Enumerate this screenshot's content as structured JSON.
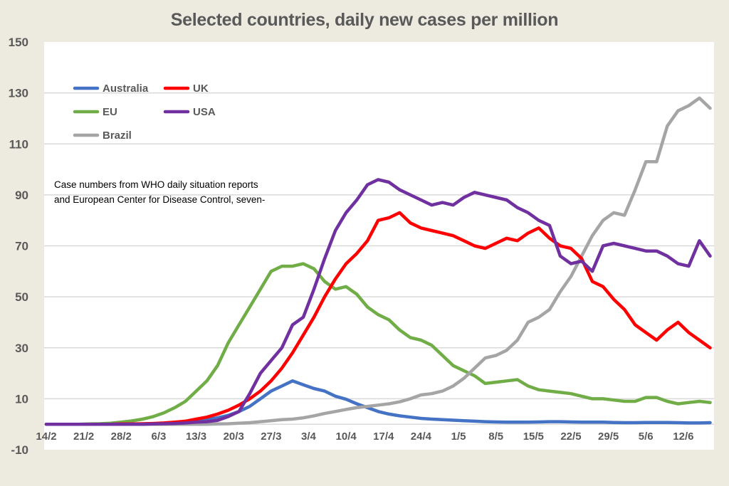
{
  "chart_data": {
    "type": "line",
    "title": "Selected countries, daily new cases per million",
    "xlabel": "",
    "ylabel": "",
    "ylim": [
      -10,
      150
    ],
    "yticks": [
      150,
      130,
      110,
      90,
      70,
      50,
      30,
      10,
      -10
    ],
    "grid": true,
    "x_start_label": "14/2",
    "x_step_days": 2,
    "x_day_range": [
      0,
      124
    ],
    "xtick_labels": [
      "14/2",
      "21/2",
      "28/2",
      "6/3",
      "13/3",
      "20/3",
      "27/3",
      "3/4",
      "10/4",
      "17/4",
      "24/4",
      "1/5",
      "8/5",
      "15/5",
      "22/5",
      "29/5",
      "5/6",
      "12/6"
    ],
    "xtick_days": [
      0,
      7,
      14,
      21,
      28,
      35,
      42,
      49,
      56,
      63,
      70,
      77,
      84,
      91,
      98,
      105,
      112,
      119
    ],
    "legend_position": "top-left",
    "annotation": [
      "Case numbers from WHO daily situation reports",
      "and European Center for Disease Control, seven-"
    ],
    "series": [
      {
        "name": "Australia",
        "color": "#4472c4",
        "values": [
          0,
          0,
          0,
          0,
          0,
          0,
          0,
          0.1,
          0.1,
          0.1,
          0.2,
          0.3,
          0.5,
          0.8,
          1.2,
          1.8,
          2.5,
          3.5,
          5,
          7,
          10,
          13,
          15,
          17,
          15.5,
          14,
          13,
          11,
          9.8,
          8,
          6.5,
          5,
          4,
          3.3,
          2.8,
          2.3,
          2,
          1.8,
          1.6,
          1.4,
          1.2,
          1,
          0.9,
          0.8,
          0.8,
          0.8,
          0.9,
          1,
          1,
          0.9,
          0.8,
          0.8,
          0.8,
          0.7,
          0.6,
          0.6,
          0.7,
          0.7,
          0.7,
          0.6,
          0.5,
          0.5,
          0.6
        ]
      },
      {
        "name": "UK",
        "color": "#ff0000",
        "values": [
          0,
          0,
          0,
          0,
          0,
          0,
          0,
          0.1,
          0.1,
          0.2,
          0.3,
          0.5,
          0.8,
          1.2,
          2,
          2.8,
          4,
          5.5,
          7.5,
          10,
          13,
          17,
          22,
          28,
          35,
          42,
          50,
          57,
          63,
          67,
          72,
          80,
          81,
          83,
          79,
          77,
          76,
          75,
          74,
          72,
          70,
          69,
          71,
          73,
          72,
          75,
          77,
          73,
          70,
          69,
          65,
          56,
          54,
          49,
          45,
          39,
          36,
          33,
          37,
          40,
          36,
          33,
          30
        ]
      },
      {
        "name": "EU",
        "color": "#70ad47",
        "values": [
          0,
          0,
          0,
          0,
          0.1,
          0.2,
          0.4,
          0.8,
          1.3,
          2,
          3,
          4.5,
          6.5,
          9,
          13,
          17,
          23,
          32,
          39,
          46,
          53,
          60,
          62,
          62,
          63,
          61,
          56,
          53,
          54,
          51,
          46,
          43,
          41,
          37,
          34,
          33,
          31,
          27,
          23,
          21,
          19,
          16,
          16.5,
          17,
          17.5,
          15,
          13.5,
          13,
          12.5,
          12,
          11,
          10,
          10,
          9.5,
          9,
          9,
          10.5,
          10.5,
          9,
          8,
          8.5,
          9,
          8.5
        ]
      },
      {
        "name": "USA",
        "color": "#7030a0",
        "values": [
          0,
          0,
          0,
          0,
          0,
          0,
          0,
          0,
          0,
          0,
          0.1,
          0.2,
          0.3,
          0.5,
          0.8,
          1,
          1.5,
          3,
          5,
          12,
          20,
          25,
          30,
          39,
          42,
          53,
          65,
          76,
          83,
          88,
          94,
          96,
          95,
          92,
          90,
          88,
          86,
          87,
          86,
          89,
          91,
          90,
          89,
          88,
          85,
          83,
          80,
          78,
          66,
          63,
          64,
          60,
          70,
          71,
          70,
          69,
          68,
          68,
          66,
          63,
          62,
          72,
          66
        ]
      },
      {
        "name": "Brazil",
        "color": "#a5a5a5",
        "values": [
          0,
          0,
          0,
          0,
          0,
          0,
          0,
          0,
          0,
          0,
          0,
          0,
          0,
          0,
          0,
          0,
          0.1,
          0.2,
          0.4,
          0.6,
          1,
          1.4,
          1.8,
          2,
          2.5,
          3.3,
          4.2,
          5,
          5.8,
          6.5,
          7,
          7.5,
          8,
          8.8,
          10,
          11.5,
          12,
          13,
          15,
          18,
          22,
          26,
          27,
          29,
          33,
          40,
          42,
          45,
          52,
          58,
          66,
          74,
          80,
          83,
          82,
          92,
          103,
          103,
          117,
          123,
          125,
          128,
          124
        ]
      }
    ]
  }
}
